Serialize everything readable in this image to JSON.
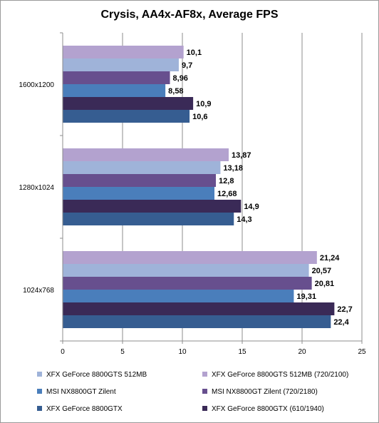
{
  "chart_data": {
    "type": "bar",
    "orientation": "horizontal",
    "title": "Crysis, AA4x-AF8x, Average FPS",
    "categories": [
      "1600x1200",
      "1280x1024",
      "1024x768"
    ],
    "xlim": [
      0,
      25
    ],
    "xticks": [
      "0",
      "5",
      "10",
      "15",
      "20",
      "25"
    ],
    "xtick_values": [
      0,
      5,
      10,
      15,
      20,
      25
    ],
    "grid": true,
    "legend_position": "bottom",
    "series": [
      {
        "name": "XFX GeForce 8800GTS 512MB (720/2100)",
        "color": "#b3a2cf",
        "values": [
          10.1,
          13.87,
          21.24
        ],
        "labels": [
          "10,1",
          "13,87",
          "21,24"
        ]
      },
      {
        "name": "XFX GeForce 8800GTS 512MB",
        "color": "#9fb3d9",
        "values": [
          9.7,
          13.18,
          20.57
        ],
        "labels": [
          "9,7",
          "13,18",
          "20,57"
        ]
      },
      {
        "name": "MSI NX8800GT Zilent (720/2180)",
        "color": "#674f8e",
        "values": [
          8.96,
          12.8,
          20.81
        ],
        "labels": [
          "8,96",
          "12,8",
          "20,81"
        ]
      },
      {
        "name": "MSI NX8800GT Zilent",
        "color": "#4a7ebb",
        "values": [
          8.58,
          12.68,
          19.31
        ],
        "labels": [
          "8,58",
          "12,68",
          "19,31"
        ]
      },
      {
        "name": "XFX GeForce 8800GTX (610/1940)",
        "color": "#3a2a57",
        "values": [
          10.9,
          14.9,
          22.7
        ],
        "labels": [
          "10,9",
          "14,9",
          "22,7"
        ]
      },
      {
        "name": "XFX GeForce 8800GTX",
        "color": "#365d91",
        "values": [
          10.6,
          14.3,
          22.4
        ],
        "labels": [
          "10,6",
          "14,3",
          "22,4"
        ]
      }
    ],
    "legend_order": [
      1,
      0,
      3,
      2,
      5,
      4
    ]
  }
}
